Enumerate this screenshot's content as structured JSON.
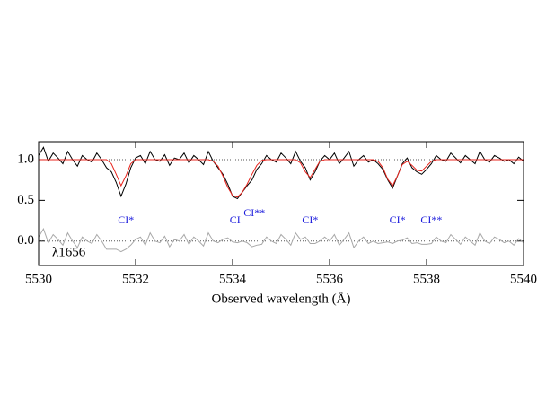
{
  "chart_data": {
    "type": "line",
    "x_label": "Observed wavelength (Å)",
    "annotation": "λ1656",
    "xlim": [
      5530,
      5540
    ],
    "ylim": [
      -0.3,
      1.22
    ],
    "xticks": [
      5530,
      5532,
      5534,
      5536,
      5538,
      5540
    ],
    "yticks": [
      {
        "value": 0,
        "label": "0.0"
      },
      {
        "value": 0.5,
        "label": "0.5"
      },
      {
        "value": 1,
        "label": "1.0"
      }
    ],
    "reference_lines": [
      1,
      0
    ],
    "x": [
      5530,
      5530.1,
      5530.2,
      5530.3,
      5530.4,
      5530.5,
      5530.6,
      5530.7,
      5530.8,
      5530.9,
      5531,
      5531.1,
      5531.2,
      5531.3,
      5531.4,
      5531.5,
      5531.6,
      5531.7,
      5531.8,
      5531.9,
      5532,
      5532.1,
      5532.2,
      5532.3,
      5532.4,
      5532.5,
      5532.6,
      5532.7,
      5532.8,
      5532.9,
      5533,
      5533.1,
      5533.2,
      5533.3,
      5533.4,
      5533.5,
      5533.6,
      5533.7,
      5533.8,
      5533.9,
      5534,
      5534.1,
      5534.2,
      5534.3,
      5534.4,
      5534.5,
      5534.6,
      5534.7,
      5534.8,
      5534.9,
      5535,
      5535.1,
      5535.2,
      5535.3,
      5535.4,
      5535.5,
      5535.6,
      5535.7,
      5535.8,
      5535.9,
      5536,
      5536.1,
      5536.2,
      5536.3,
      5536.4,
      5536.5,
      5536.6,
      5536.7,
      5536.8,
      5536.9,
      5537,
      5537.1,
      5537.2,
      5537.3,
      5537.4,
      5537.5,
      5537.6,
      5537.7,
      5537.8,
      5537.9,
      5538,
      5538.1,
      5538.2,
      5538.3,
      5538.4,
      5538.5,
      5538.6,
      5538.7,
      5538.8,
      5538.9,
      5539,
      5539.1,
      5539.2,
      5539.3,
      5539.4,
      5539.5,
      5539.6,
      5539.7,
      5539.8,
      5539.9,
      5540
    ],
    "series": [
      {
        "color": "#000000",
        "values": [
          1.05,
          1.15,
          0.98,
          1.08,
          1.02,
          0.95,
          1.1,
          1.0,
          0.92,
          1.05,
          1.0,
          0.97,
          1.08,
          1.0,
          0.9,
          0.85,
          0.72,
          0.55,
          0.7,
          0.9,
          1.02,
          1.05,
          0.95,
          1.1,
          1.0,
          0.98,
          1.06,
          0.93,
          1.02,
          1.0,
          1.08,
          0.96,
          1.05,
          1.0,
          0.94,
          1.1,
          0.98,
          0.9,
          0.82,
          0.7,
          0.55,
          0.52,
          0.6,
          0.68,
          0.75,
          0.88,
          0.95,
          1.05,
          1.0,
          0.97,
          1.08,
          1.02,
          0.95,
          1.1,
          0.98,
          0.9,
          0.75,
          0.85,
          0.98,
          1.05,
          1.0,
          1.08,
          0.95,
          1.02,
          1.1,
          0.92,
          1.0,
          1.05,
          0.97,
          1.0,
          0.95,
          0.88,
          0.75,
          0.65,
          0.8,
          0.95,
          1.02,
          0.9,
          0.85,
          0.82,
          0.88,
          0.95,
          1.05,
          1.0,
          0.98,
          1.08,
          1.02,
          0.96,
          1.05,
          1.0,
          0.95,
          1.1,
          1.0,
          0.97,
          1.05,
          1.02,
          0.98,
          1.0,
          0.95,
          1.03,
          0.98
        ]
      },
      {
        "color": "#e8251e",
        "values": [
          1,
          1,
          1,
          1,
          1,
          1,
          1,
          1,
          1,
          1,
          1,
          1,
          1,
          1,
          1,
          0.95,
          0.82,
          0.68,
          0.8,
          0.95,
          1,
          1,
          1,
          1,
          1,
          1,
          1,
          1,
          1,
          1,
          1,
          1,
          1,
          1,
          1,
          1,
          0.98,
          0.92,
          0.8,
          0.66,
          0.56,
          0.54,
          0.6,
          0.7,
          0.82,
          0.93,
          0.99,
          1,
          1,
          1,
          1,
          1,
          1,
          1,
          0.96,
          0.85,
          0.78,
          0.88,
          0.98,
          1,
          1,
          1,
          1,
          1,
          1,
          1,
          1,
          1,
          1,
          1,
          0.98,
          0.9,
          0.76,
          0.68,
          0.8,
          0.94,
          0.98,
          0.93,
          0.87,
          0.86,
          0.92,
          0.98,
          1,
          1,
          1,
          1,
          1,
          1,
          1,
          1,
          1,
          1,
          1,
          1,
          1,
          1,
          1,
          1,
          1,
          1,
          1
        ]
      },
      {
        "color": "#a8a8a8",
        "values": [
          0.05,
          0.15,
          -0.02,
          0.08,
          0.02,
          -0.05,
          0.1,
          0,
          -0.08,
          0.05,
          0,
          -0.03,
          0.08,
          0,
          -0.1,
          -0.1,
          -0.1,
          -0.13,
          -0.1,
          -0.05,
          0.02,
          0.05,
          -0.05,
          0.1,
          0,
          -0.02,
          0.06,
          -0.07,
          0.02,
          0,
          0.08,
          -0.04,
          0.05,
          0,
          -0.06,
          0.1,
          0,
          -0.02,
          0.02,
          0.04,
          -0.01,
          -0.02,
          0,
          -0.02,
          -0.07,
          -0.05,
          -0.04,
          0.05,
          0,
          -0.03,
          0.08,
          0.02,
          -0.05,
          0.1,
          0.02,
          0.05,
          -0.03,
          -0.03,
          0,
          0.05,
          0,
          0.08,
          -0.05,
          0.02,
          0.1,
          -0.08,
          0,
          0.05,
          -0.03,
          0,
          -0.03,
          -0.02,
          -0.01,
          -0.03,
          0,
          0.01,
          0.04,
          -0.03,
          -0.02,
          -0.04,
          -0.04,
          -0.03,
          0.05,
          0,
          -0.02,
          0.08,
          0.02,
          -0.04,
          0.05,
          0,
          -0.05,
          0.1,
          0,
          -0.03,
          0.05,
          0.02,
          -0.02,
          0,
          -0.05,
          0.03,
          -0.02
        ]
      }
    ],
    "line_labels": {
      "color": "#1a1adc",
      "items": [
        {
          "text": "CI*",
          "x": 5531.8
        },
        {
          "text": "CI",
          "x": 5534.05
        },
        {
          "text": "CI**",
          "x": 5534.45
        },
        {
          "text": "CI*",
          "x": 5535.6
        },
        {
          "text": "CI*",
          "x": 5537.4
        },
        {
          "text": "CI**",
          "x": 5538.1
        }
      ]
    }
  }
}
